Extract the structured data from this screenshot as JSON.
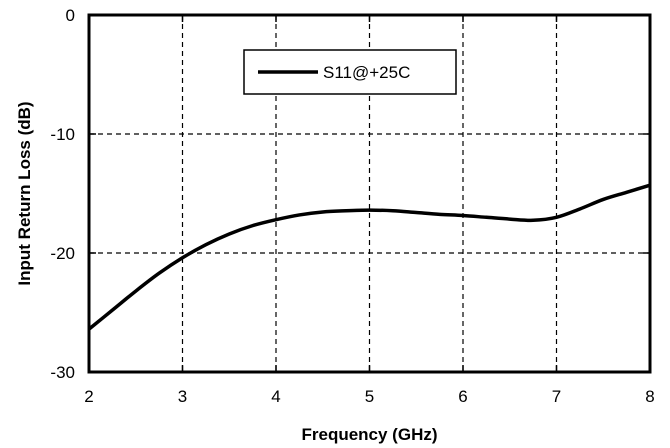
{
  "chart_data": {
    "type": "line",
    "xlabel": "Frequency (GHz)",
    "ylabel": "Input Return Loss (dB)",
    "xlim": [
      2,
      8
    ],
    "ylim": [
      -30,
      0
    ],
    "xticks": [
      "2",
      "3",
      "4",
      "5",
      "6",
      "7",
      "8"
    ],
    "yticks": [
      "0",
      "-10",
      "-20",
      "-30"
    ],
    "grid": "dashed",
    "legend_position": "top-center",
    "series": [
      {
        "name": "S11@+25C",
        "color": "#000000",
        "x": [
          2.0,
          2.25,
          2.5,
          2.75,
          3.0,
          3.25,
          3.5,
          3.75,
          4.0,
          4.25,
          4.5,
          4.75,
          5.0,
          5.25,
          5.5,
          5.75,
          6.0,
          6.25,
          6.5,
          6.75,
          7.0,
          7.25,
          7.5,
          7.75,
          8.0
        ],
        "y": [
          -26.4,
          -24.8,
          -23.2,
          -21.7,
          -20.4,
          -19.3,
          -18.4,
          -17.7,
          -17.2,
          -16.8,
          -16.55,
          -16.45,
          -16.4,
          -16.45,
          -16.6,
          -16.75,
          -16.85,
          -17.0,
          -17.15,
          -17.25,
          -17.0,
          -16.3,
          -15.5,
          -14.9,
          -14.3
        ]
      }
    ]
  }
}
